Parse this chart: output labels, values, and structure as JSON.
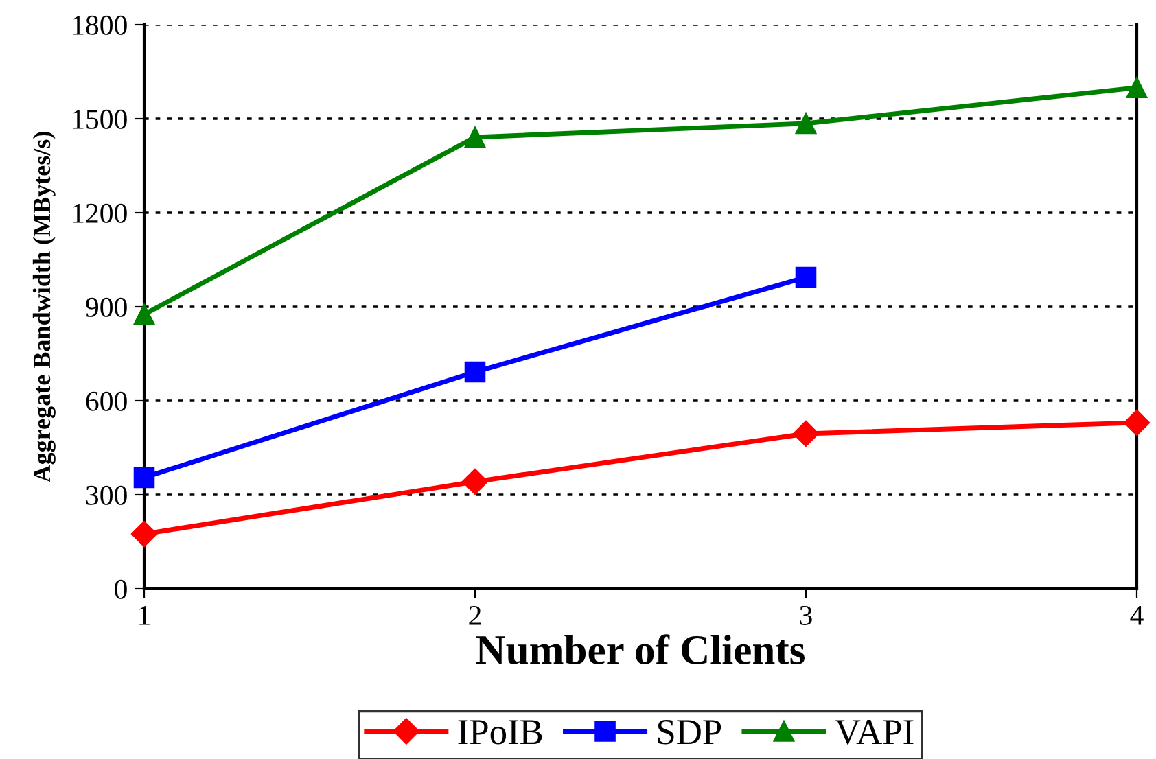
{
  "chart_data": {
    "type": "line",
    "xlabel": "Number of Clients",
    "ylabel": "Aggregate Bandwidth (MBytes/s)",
    "x": [
      1,
      2,
      3,
      4
    ],
    "xlim": [
      1,
      4
    ],
    "xticks": [
      1,
      2,
      3,
      4
    ],
    "ylim": [
      0,
      1800
    ],
    "yticks": [
      0,
      300,
      600,
      900,
      1200,
      1500,
      1800
    ],
    "grid": "y",
    "legend": "bottom",
    "series": [
      {
        "name": "IPoIB",
        "color": "#ff0000",
        "marker": "diamond",
        "values": [
          175,
          342,
          495,
          530
        ]
      },
      {
        "name": "SDP",
        "color": "#0000ff",
        "marker": "square",
        "values": [
          355,
          692,
          994,
          null
        ]
      },
      {
        "name": "VAPI",
        "color": "#008000",
        "marker": "triangle",
        "values": [
          876,
          1441,
          1485,
          1599
        ]
      }
    ]
  }
}
